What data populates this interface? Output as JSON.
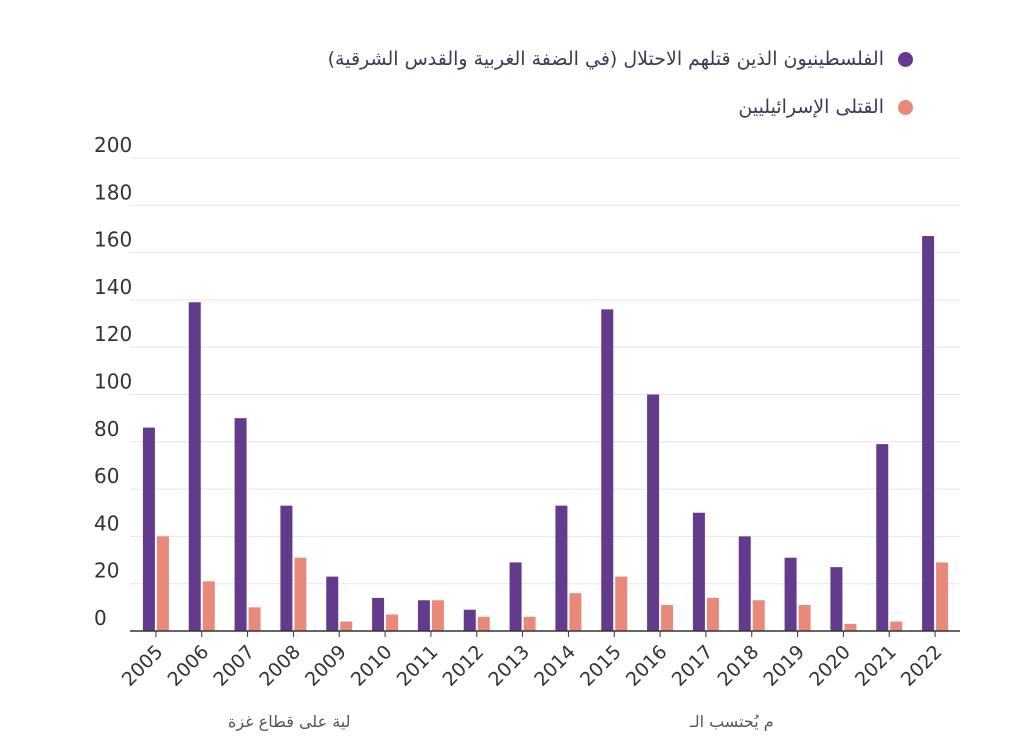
{
  "chart_data": {
    "type": "bar",
    "categories": [
      "2005",
      "2006",
      "2007",
      "2008",
      "2009",
      "2010",
      "2011",
      "2012",
      "2013",
      "2014",
      "2015",
      "2016",
      "2017",
      "2018",
      "2019",
      "2020",
      "2021",
      "2022"
    ],
    "series": [
      {
        "name": "الفلسطينيون الذين قتلهم الاحتلال (في الضفة الغربية والقدس الشرقية)",
        "color": "#633b8c",
        "values": [
          86,
          139,
          90,
          53,
          23,
          14,
          13,
          9,
          29,
          53,
          136,
          100,
          50,
          40,
          31,
          27,
          79,
          167
        ]
      },
      {
        "name": "القتلى الإسرائيليين",
        "color": "#e8897a",
        "values": [
          40,
          21,
          10,
          31,
          4,
          7,
          13,
          6,
          6,
          16,
          23,
          11,
          14,
          13,
          11,
          3,
          4,
          29
        ]
      }
    ],
    "yticks": [
      "0",
      "20",
      "40",
      "60",
      "80",
      "100",
      "120",
      "140",
      "160",
      "180",
      "200"
    ],
    "ylim": [
      0,
      200
    ],
    "grid": true,
    "legend_position": "top-right"
  },
  "footnotes": {
    "left": "لية على قطاع غزة",
    "right": "م يُحتسب الـ"
  }
}
